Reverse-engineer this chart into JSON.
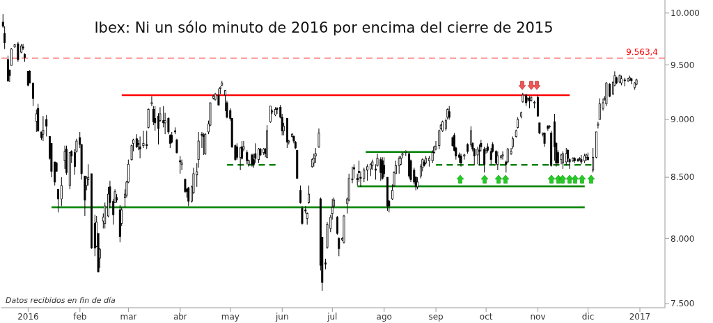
{
  "chart_data": {
    "type": "candlestick",
    "title": "Ibex: Ni un sólo minuto de 2016 por encima del cierre de 2015",
    "color": "#000000",
    "log": true,
    "annotations": [
      "Datos recibidos en fin de día"
    ],
    "xlim": [
      "2015-12-16",
      "2017-01-16"
    ],
    "xticks": [
      {
        "value": "2016-01-01",
        "label": "2016"
      },
      {
        "value": "2016-02-01",
        "label": "feb"
      },
      {
        "value": "2016-03-01",
        "label": "mar"
      },
      {
        "value": "2016-04-01",
        "label": "abr"
      },
      {
        "value": "2016-05-01",
        "label": "may"
      },
      {
        "value": "2016-06-01",
        "label": "jun"
      },
      {
        "value": "2016-07-01",
        "label": "jul"
      },
      {
        "value": "2016-08-01",
        "label": "ago"
      },
      {
        "value": "2016-09-01",
        "label": "sep"
      },
      {
        "value": "2016-10-01",
        "label": "oct"
      },
      {
        "value": "2016-11-01",
        "label": "nov"
      },
      {
        "value": "2016-12-01",
        "label": "dic"
      },
      {
        "value": "2017-01-01",
        "label": "2017"
      }
    ],
    "ylim": [
      7470,
      10130
    ],
    "yticks": [
      {
        "value": 7500,
        "label": "7.500"
      },
      {
        "value": 8000,
        "label": "8.000"
      },
      {
        "value": 8500,
        "label": "8.500"
      },
      {
        "value": 9000,
        "label": "9.000"
      },
      {
        "value": 9500,
        "label": "9.500"
      },
      {
        "value": 10000,
        "label": "10.000"
      }
    ],
    "ref_lines": [
      {
        "axis": "y",
        "value": 9563.4,
        "label": "9.563,4",
        "color": "#ff0000",
        "line_style": "dashed"
      }
    ],
    "x": [
      "2015-12-17",
      "2015-12-18",
      "2015-12-20",
      "2015-12-21",
      "2015-12-22",
      "2015-12-24",
      "2015-12-26",
      "2015-12-28",
      "2015-12-29",
      "2015-12-30",
      "2016-01-01",
      "2016-01-02",
      "2016-01-04",
      "2016-01-06",
      "2016-01-07",
      "2016-01-09",
      "2016-01-10",
      "2016-01-12",
      "2016-01-14",
      "2016-01-15",
      "2016-01-17",
      "2016-01-18",
      "2016-01-19",
      "2016-01-21",
      "2016-01-23",
      "2016-01-24",
      "2016-01-26",
      "2016-01-27",
      "2016-01-29",
      "2016-01-30",
      "2016-02-01",
      "2016-02-02",
      "2016-02-04",
      "2016-02-05",
      "2016-02-06",
      "2016-02-08",
      "2016-02-10",
      "2016-02-11",
      "2016-02-12",
      "2016-02-13",
      "2016-02-15",
      "2016-02-16",
      "2016-02-18",
      "2016-02-19",
      "2016-02-21",
      "2016-02-22",
      "2016-02-23",
      "2016-02-25",
      "2016-02-26",
      "2016-02-28",
      "2016-02-29",
      "2016-03-01",
      "2016-03-03",
      "2016-03-04",
      "2016-03-06",
      "2016-03-07",
      "2016-03-08",
      "2016-03-10",
      "2016-03-12",
      "2016-03-13",
      "2016-03-15",
      "2016-03-16",
      "2016-03-17",
      "2016-03-19",
      "2016-03-20",
      "2016-03-22",
      "2016-03-23",
      "2016-03-25",
      "2016-03-26",
      "2016-03-27",
      "2016-03-29",
      "2016-03-30",
      "2016-04-01",
      "2016-04-02",
      "2016-04-04",
      "2016-04-05",
      "2016-04-06",
      "2016-04-08",
      "2016-04-09",
      "2016-04-11",
      "2016-04-12",
      "2016-04-14",
      "2016-04-15",
      "2016-04-16",
      "2016-04-18",
      "2016-04-19",
      "2016-04-21",
      "2016-04-22",
      "2016-04-24",
      "2016-04-25",
      "2016-04-26",
      "2016-04-28",
      "2016-04-29",
      "2016-05-01",
      "2016-05-02",
      "2016-05-04",
      "2016-05-05",
      "2016-05-07",
      "2016-05-08",
      "2016-05-09",
      "2016-05-11",
      "2016-05-12",
      "2016-05-14",
      "2016-05-15",
      "2016-05-16",
      "2016-05-18",
      "2016-05-19",
      "2016-05-21",
      "2016-05-22",
      "2016-05-23",
      "2016-05-25",
      "2016-05-26",
      "2016-05-28",
      "2016-05-29",
      "2016-05-31",
      "2016-06-01",
      "2016-06-02",
      "2016-06-04",
      "2016-06-05",
      "2016-06-07",
      "2016-06-08",
      "2016-06-09",
      "2016-06-10",
      "2016-06-12",
      "2016-06-13",
      "2016-06-15",
      "2016-06-16",
      "2016-06-17",
      "2016-06-19",
      "2016-06-20",
      "2016-06-21",
      "2016-06-23",
      "2016-06-24",
      "2016-06-25",
      "2016-06-27",
      "2016-06-28",
      "2016-06-30",
      "2016-07-01",
      "2016-07-02",
      "2016-07-04",
      "2016-07-05",
      "2016-07-07",
      "2016-07-08",
      "2016-07-10",
      "2016-07-11",
      "2016-07-13",
      "2016-07-14",
      "2016-07-16",
      "2016-07-17",
      "2016-07-18",
      "2016-07-20",
      "2016-07-22",
      "2016-07-24",
      "2016-07-25",
      "2016-07-27",
      "2016-07-28",
      "2016-07-30",
      "2016-07-31",
      "2016-08-01",
      "2016-08-03",
      "2016-08-04",
      "2016-08-06",
      "2016-08-07",
      "2016-08-08",
      "2016-08-10",
      "2016-08-11",
      "2016-08-12",
      "2016-08-14",
      "2016-08-16",
      "2016-08-17",
      "2016-08-19",
      "2016-08-20",
      "2016-08-21",
      "2016-08-23",
      "2016-08-24",
      "2016-08-25",
      "2016-08-26",
      "2016-08-28",
      "2016-08-30",
      "2016-08-31",
      "2016-09-01",
      "2016-09-03",
      "2016-09-04",
      "2016-09-05",
      "2016-09-07",
      "2016-09-08",
      "2016-09-09",
      "2016-09-11",
      "2016-09-12",
      "2016-09-13",
      "2016-09-15",
      "2016-09-16",
      "2016-09-18",
      "2016-09-20",
      "2016-09-22",
      "2016-09-23",
      "2016-09-24",
      "2016-09-26",
      "2016-09-27",
      "2016-09-28",
      "2016-09-30",
      "2016-10-01",
      "2016-10-02",
      "2016-10-04",
      "2016-10-05",
      "2016-10-07",
      "2016-10-08",
      "2016-10-10",
      "2016-10-11",
      "2016-10-13",
      "2016-10-14",
      "2016-10-16",
      "2016-10-17",
      "2016-10-19",
      "2016-10-20",
      "2016-10-22",
      "2016-10-23",
      "2016-10-25",
      "2016-10-26",
      "2016-10-27",
      "2016-10-28",
      "2016-10-30",
      "2016-11-01",
      "2016-11-02",
      "2016-11-04",
      "2016-11-05",
      "2016-11-07",
      "2016-11-08",
      "2016-11-09",
      "2016-11-11",
      "2016-11-12",
      "2016-11-13",
      "2016-11-15",
      "2016-11-16",
      "2016-11-18",
      "2016-11-19",
      "2016-11-20",
      "2016-11-22",
      "2016-11-23",
      "2016-11-25",
      "2016-11-26",
      "2016-11-27",
      "2016-11-29",
      "2016-11-30",
      "2016-12-01",
      "2016-12-04",
      "2016-12-06",
      "2016-12-07",
      "2016-12-08",
      "2016-12-10",
      "2016-12-11",
      "2016-12-12",
      "2016-12-14",
      "2016-12-16",
      "2016-12-17",
      "2016-12-18",
      "2016-12-20",
      "2016-12-21",
      "2016-12-23",
      "2016-12-25",
      "2016-12-26",
      "2016-12-27",
      "2016-12-29",
      "2016-12-30"
    ],
    "ohlc": [
      [
        9910,
        9990,
        9854,
        9870
      ],
      [
        9800,
        9870,
        9650,
        9710
      ],
      [
        9550,
        9587,
        9340,
        9350
      ],
      [
        9450,
        9456,
        9340,
        9400
      ],
      [
        9495,
        9660,
        9495,
        9650
      ],
      [
        9670,
        9700,
        9660,
        9690
      ],
      [
        9700,
        9720,
        9530,
        9550
      ],
      [
        9620,
        9700,
        9610,
        9680
      ],
      [
        9670,
        9700,
        9640,
        9660
      ],
      [
        9600,
        9610,
        9530,
        9570
      ],
      [
        9440,
        9440,
        9300,
        9310
      ],
      [
        9440,
        9450,
        9330,
        9330
      ],
      [
        9330,
        9330,
        9120,
        9190
      ],
      [
        8985,
        9090,
        8890,
        9050
      ],
      [
        9100,
        9140,
        8890,
        8900
      ],
      [
        8890,
        8890,
        8820,
        8840
      ],
      [
        8870,
        9030,
        8810,
        8905
      ],
      [
        9000,
        9040,
        8850,
        8940
      ],
      [
        8850,
        8850,
        8650,
        8660
      ],
      [
        8790,
        8790,
        8500,
        8550
      ],
      [
        8630,
        8630,
        8430,
        8460
      ],
      [
        8620,
        8630,
        8545,
        8550
      ],
      [
        8400,
        8400,
        8210,
        8320
      ],
      [
        8320,
        8500,
        8260,
        8430
      ],
      [
        8640,
        8770,
        8570,
        8720
      ],
      [
        8740,
        8770,
        8520,
        8540
      ],
      [
        8430,
        8710,
        8400,
        8710
      ],
      [
        8720,
        8730,
        8620,
        8680
      ],
      [
        8710,
        8740,
        8520,
        8590
      ],
      [
        8720,
        8830,
        8710,
        8810
      ],
      [
        8840,
        8890,
        8750,
        8780
      ],
      [
        8780,
        8780,
        8480,
        8530
      ],
      [
        8510,
        8510,
        8180,
        8310
      ],
      [
        8430,
        8510,
        8390,
        8490
      ],
      [
        8480,
        8610,
        8430,
        8500
      ],
      [
        8530,
        8530,
        7920,
        7925
      ],
      [
        8120,
        8190,
        7860,
        7925
      ],
      [
        7940,
        8180,
        7930,
        8130
      ],
      [
        8040,
        8040,
        7735,
        7740
      ],
      [
        7845,
        7925,
        7770,
        7915
      ],
      [
        8140,
        8200,
        8080,
        8170
      ],
      [
        8120,
        8290,
        8080,
        8260
      ],
      [
        8180,
        8420,
        8170,
        8360
      ],
      [
        8420,
        8470,
        8250,
        8290
      ],
      [
        8300,
        8320,
        8110,
        8190
      ],
      [
        8290,
        8400,
        8290,
        8380
      ],
      [
        8330,
        8360,
        8290,
        8310
      ],
      [
        8230,
        8270,
        7970,
        8015
      ],
      [
        8120,
        8250,
        8100,
        8230
      ],
      [
        8330,
        8400,
        8250,
        8360
      ],
      [
        8350,
        8470,
        8330,
        8460
      ],
      [
        8460,
        8650,
        8450,
        8610
      ],
      [
        8650,
        8780,
        8640,
        8770
      ],
      [
        8790,
        8830,
        8720,
        8820
      ],
      [
        8830,
        8870,
        8750,
        8760
      ],
      [
        8790,
        8820,
        8730,
        8780
      ],
      [
        8760,
        8850,
        8660,
        8740
      ],
      [
        8770,
        8900,
        8750,
        8790
      ],
      [
        8780,
        8900,
        8740,
        8770
      ],
      [
        8930,
        9100,
        8920,
        9090
      ],
      [
        9140,
        9210,
        9120,
        9150
      ],
      [
        9090,
        9120,
        8950,
        8980
      ],
      [
        9010,
        9120,
        8900,
        8970
      ],
      [
        9030,
        9055,
        8780,
        8920
      ],
      [
        8990,
        9110,
        8980,
        9050
      ],
      [
        8990,
        9120,
        8930,
        8970
      ],
      [
        8970,
        9060,
        8870,
        8990
      ],
      [
        9010,
        9020,
        8870,
        8890
      ],
      [
        8860,
        8870,
        8750,
        8790
      ],
      [
        8860,
        8890,
        8790,
        8800
      ],
      [
        8900,
        8930,
        8870,
        8890
      ],
      [
        8820,
        8830,
        8700,
        8710
      ],
      [
        8640,
        8680,
        8530,
        8630
      ],
      [
        8610,
        8650,
        8560,
        8620
      ],
      [
        8480,
        8490,
        8370,
        8380
      ],
      [
        8400,
        8410,
        8330,
        8380
      ],
      [
        8410,
        8420,
        8260,
        8300
      ],
      [
        8300,
        8430,
        8290,
        8420
      ],
      [
        8370,
        8580,
        8360,
        8530
      ],
      [
        8520,
        8620,
        8420,
        8545
      ],
      [
        8650,
        8890,
        8580,
        8810
      ],
      [
        8870,
        8890,
        8750,
        8860
      ],
      [
        8860,
        8880,
        8690,
        8850
      ],
      [
        8700,
        8880,
        8690,
        8870
      ],
      [
        8890,
        8990,
        8870,
        8960
      ],
      [
        8950,
        9150,
        8940,
        9150
      ],
      [
        9190,
        9220,
        9180,
        9210
      ],
      [
        9180,
        9240,
        9170,
        9230
      ],
      [
        9220,
        9280,
        9125,
        9130
      ],
      [
        9280,
        9300,
        9230,
        9290
      ],
      [
        9310,
        9350,
        9300,
        9330
      ],
      [
        9220,
        9265,
        9075,
        9260
      ],
      [
        9150,
        9170,
        9010,
        9020
      ],
      [
        9080,
        9100,
        8990,
        9010
      ],
      [
        9010,
        9010,
        8750,
        8760
      ],
      [
        8770,
        8780,
        8640,
        8650
      ],
      [
        8760,
        8790,
        8650,
        8670
      ],
      [
        8670,
        8760,
        8560,
        8750
      ],
      [
        8760,
        8810,
        8650,
        8660
      ],
      [
        8740,
        8810,
        8720,
        8760
      ],
      [
        8710,
        8730,
        8610,
        8640
      ],
      [
        8610,
        8650,
        8590,
        8640
      ],
      [
        8690,
        8700,
        8590,
        8610
      ],
      [
        8650,
        8700,
        8580,
        8610
      ],
      [
        8700,
        8790,
        8620,
        8660
      ],
      [
        8650,
        8750,
        8620,
        8740
      ],
      [
        8740,
        8750,
        8680,
        8690
      ],
      [
        8710,
        8750,
        8690,
        8740
      ],
      [
        8740,
        8750,
        8670,
        8700
      ],
      [
        8670,
        8950,
        8660,
        8900
      ],
      [
        8980,
        9120,
        8970,
        9120
      ],
      [
        9070,
        9090,
        9050,
        9075
      ],
      [
        9040,
        9110,
        9030,
        9090
      ],
      [
        9100,
        9110,
        9050,
        9090
      ],
      [
        9110,
        9130,
        9010,
        9020
      ],
      [
        9020,
        9050,
        8860,
        8900
      ],
      [
        8900,
        8970,
        8860,
        8940
      ],
      [
        9010,
        9010,
        8750,
        8800
      ],
      [
        8800,
        8820,
        8780,
        8810
      ],
      [
        8850,
        8880,
        8840,
        8870
      ],
      [
        8850,
        8860,
        8790,
        8810
      ],
      [
        8800,
        8810,
        8740,
        8750
      ],
      [
        8730,
        8730,
        8485,
        8490
      ],
      [
        8390,
        8430,
        8280,
        8290
      ],
      [
        8240,
        8260,
        8110,
        8120
      ],
      [
        8230,
        8260,
        8200,
        8220
      ],
      [
        8160,
        8210,
        8110,
        8200
      ],
      [
        8290,
        8430,
        8280,
        8360
      ],
      [
        8590,
        8660,
        8580,
        8650
      ],
      [
        8620,
        8700,
        8590,
        8660
      ],
      [
        8680,
        8750,
        8620,
        8700
      ],
      [
        8760,
        8920,
        8750,
        8880
      ],
      [
        8320,
        8330,
        7750,
        7790
      ],
      [
        8010,
        8010,
        7595,
        7660
      ],
      [
        7810,
        7840,
        7760,
        7800
      ],
      [
        7930,
        8130,
        7920,
        8110
      ],
      [
        8080,
        8190,
        8050,
        8170
      ],
      [
        8200,
        8320,
        8150,
        8250
      ],
      [
        8260,
        8330,
        8250,
        8310
      ],
      [
        8170,
        8180,
        8030,
        8040
      ],
      [
        8000,
        8010,
        7860,
        7920
      ],
      [
        7990,
        8010,
        7980,
        8000
      ],
      [
        7970,
        8190,
        7960,
        8180
      ],
      [
        8280,
        8330,
        8200,
        8320
      ],
      [
        8310,
        8530,
        8300,
        8490
      ],
      [
        8480,
        8590,
        8450,
        8485
      ],
      [
        8580,
        8610,
        8490,
        8570
      ],
      [
        8490,
        8530,
        8430,
        8480
      ],
      [
        8550,
        8640,
        8460,
        8540
      ],
      [
        8500,
        8550,
        8420,
        8490
      ],
      [
        8490,
        8580,
        8460,
        8560
      ],
      [
        8560,
        8610,
        8470,
        8590
      ],
      [
        8570,
        8620,
        8510,
        8610
      ],
      [
        8600,
        8650,
        8560,
        8630
      ],
      [
        8570,
        8610,
        8480,
        8560
      ],
      [
        8600,
        8700,
        8590,
        8660
      ],
      [
        8650,
        8670,
        8470,
        8540
      ],
      [
        8640,
        8670,
        8480,
        8490
      ],
      [
        8600,
        8670,
        8500,
        8530
      ],
      [
        8500,
        8500,
        8220,
        8260
      ],
      [
        8300,
        8310,
        8210,
        8260
      ],
      [
        8320,
        8440,
        8310,
        8390
      ],
      [
        8430,
        8550,
        8420,
        8540
      ],
      [
        8530,
        8640,
        8530,
        8600
      ],
      [
        8600,
        8680,
        8530,
        8660
      ],
      [
        8610,
        8680,
        8600,
        8660
      ],
      [
        8690,
        8710,
        8660,
        8700
      ],
      [
        8710,
        8730,
        8680,
        8720
      ],
      [
        8700,
        8710,
        8490,
        8510
      ],
      [
        8640,
        8650,
        8460,
        8480
      ],
      [
        8560,
        8580,
        8440,
        8460
      ],
      [
        8500,
        8510,
        8390,
        8420
      ],
      [
        8420,
        8500,
        8400,
        8460
      ],
      [
        8510,
        8610,
        8490,
        8590
      ],
      [
        8580,
        8660,
        8550,
        8650
      ],
      [
        8630,
        8650,
        8590,
        8600
      ],
      [
        8620,
        8680,
        8610,
        8660
      ],
      [
        8640,
        8680,
        8590,
        8660
      ],
      [
        8640,
        8730,
        8620,
        8710
      ],
      [
        8710,
        8770,
        8700,
        8760
      ],
      [
        8740,
        8810,
        8730,
        8760
      ],
      [
        8770,
        8910,
        8740,
        8900
      ],
      [
        8920,
        8960,
        8910,
        8950
      ],
      [
        8900,
        8990,
        8890,
        8980
      ],
      [
        8920,
        9010,
        8900,
        8990
      ],
      [
        9020,
        9100,
        9000,
        9090
      ],
      [
        9070,
        9120,
        9000,
        9020
      ],
      [
        8840,
        8850,
        8760,
        8770
      ],
      [
        8860,
        8880,
        8720,
        8730
      ],
      [
        8750,
        8760,
        8650,
        8680
      ],
      [
        8690,
        8710,
        8620,
        8670
      ],
      [
        8680,
        8700,
        8590,
        8620
      ],
      [
        8680,
        8700,
        8650,
        8690
      ],
      [
        8780,
        8790,
        8700,
        8720
      ],
      [
        8780,
        8940,
        8760,
        8900
      ],
      [
        8790,
        8800,
        8720,
        8740
      ],
      [
        8740,
        8750,
        8600,
        8680
      ],
      [
        8690,
        8760,
        8610,
        8740
      ],
      [
        8730,
        8780,
        8600,
        8720
      ],
      [
        8790,
        8820,
        8720,
        8760
      ],
      [
        8740,
        8760,
        8540,
        8610
      ],
      [
        8730,
        8750,
        8700,
        8740
      ],
      [
        8760,
        8790,
        8710,
        8730
      ],
      [
        8720,
        8750,
        8610,
        8650
      ],
      [
        8780,
        8800,
        8710,
        8720
      ],
      [
        8720,
        8730,
        8600,
        8620
      ],
      [
        8610,
        8720,
        8560,
        8680
      ],
      [
        8670,
        8690,
        8650,
        8680
      ],
      [
        8680,
        8720,
        8650,
        8690
      ],
      [
        8630,
        8640,
        8540,
        8610
      ],
      [
        8630,
        8750,
        8620,
        8740
      ],
      [
        8700,
        8750,
        8690,
        8720
      ],
      [
        8760,
        8850,
        8740,
        8830
      ],
      [
        8850,
        8910,
        8840,
        8900
      ],
      [
        8930,
        9020,
        8920,
        9000
      ],
      [
        9030,
        9070,
        9010,
        9060
      ],
      [
        9160,
        9240,
        9150,
        9220
      ],
      [
        9220,
        9230,
        9120,
        9150
      ],
      [
        9180,
        9200,
        9160,
        9190
      ],
      [
        9190,
        9210,
        9100,
        9170
      ],
      [
        9170,
        9210,
        9160,
        9200
      ],
      [
        9150,
        9170,
        9100,
        9155
      ],
      [
        9200,
        9220,
        9030,
        9030
      ],
      [
        8970,
        8970,
        8870,
        8880
      ],
      [
        8870,
        8885,
        8850,
        8880
      ],
      [
        8880,
        8885,
        8760,
        8790
      ],
      [
        8940,
        8950,
        8900,
        8920
      ],
      [
        8935,
        8950,
        8920,
        8940
      ],
      [
        8880,
        8900,
        8590,
        8600
      ],
      [
        8980,
        9050,
        8640,
        8760
      ],
      [
        8790,
        8800,
        8590,
        8620
      ],
      [
        8710,
        8730,
        8600,
        8620
      ],
      [
        8650,
        8700,
        8610,
        8690
      ],
      [
        8620,
        8720,
        8570,
        8700
      ],
      [
        8630,
        8750,
        8600,
        8700
      ],
      [
        8730,
        8740,
        8630,
        8660
      ],
      [
        8650,
        8660,
        8570,
        8630
      ],
      [
        8640,
        8670,
        8630,
        8660
      ],
      [
        8660,
        8670,
        8620,
        8640
      ],
      [
        8650,
        8660,
        8630,
        8640
      ],
      [
        8655,
        8670,
        8640,
        8660
      ],
      [
        8650,
        8690,
        8610,
        8630
      ],
      [
        8640,
        8700,
        8620,
        8680
      ],
      [
        8670,
        8700,
        8640,
        8690
      ],
      [
        8670,
        8710,
        8640,
        8650
      ],
      [
        8560,
        8750,
        8540,
        8670
      ],
      [
        8670,
        8890,
        8660,
        8890
      ],
      [
        8950,
        8980,
        8920,
        8960
      ],
      [
        9000,
        9190,
        9000,
        9140
      ],
      [
        9100,
        9190,
        9080,
        9150
      ],
      [
        9180,
        9210,
        9170,
        9190
      ],
      [
        9140,
        9340,
        9120,
        9330
      ],
      [
        9320,
        9330,
        9200,
        9210
      ],
      [
        9230,
        9340,
        9220,
        9340
      ],
      [
        9310,
        9440,
        9300,
        9400
      ],
      [
        9380,
        9390,
        9320,
        9330
      ],
      [
        9340,
        9410,
        9330,
        9400
      ],
      [
        9330,
        9400,
        9310,
        9370
      ],
      [
        9360,
        9380,
        9300,
        9350
      ],
      [
        9350,
        9380,
        9340,
        9370
      ],
      [
        9360,
        9400,
        9350,
        9380
      ],
      [
        9370,
        9380,
        9320,
        9350
      ],
      [
        9290,
        9340,
        9270,
        9330
      ],
      [
        9320,
        9370,
        9310,
        9360
      ]
    ],
    "series": [
      {
        "type": "line",
        "color": "#ff0000",
        "line_style": "solid",
        "x": [
          "2016-02-26",
          "2016-11-20"
        ],
        "values": [
          9220,
          9220
        ]
      },
      {
        "type": "line",
        "color": "#008000",
        "line_style": "solid",
        "x": [
          "2016-01-15",
          "2016-11-29"
        ],
        "values": [
          8250,
          8250
        ]
      },
      {
        "type": "line",
        "color": "#008000",
        "line_style": "solid",
        "x": [
          "2016-07-21",
          "2016-08-31"
        ],
        "values": [
          8715,
          8715
        ]
      },
      {
        "type": "line",
        "color": "#008000",
        "line_style": "solid",
        "x": [
          "2016-07-16",
          "2016-11-29"
        ],
        "values": [
          8424,
          8424
        ]
      },
      {
        "type": "line",
        "color": "#008000",
        "line_style": "dashed",
        "x": [
          "2016-04-29",
          "2016-05-28"
        ],
        "values": [
          8605,
          8605
        ]
      },
      {
        "type": "line",
        "color": "#008000",
        "line_style": "dashed",
        "x": [
          "2016-09-01",
          "2016-12-03"
        ],
        "values": [
          8605,
          8605
        ]
      }
    ]
  }
}
